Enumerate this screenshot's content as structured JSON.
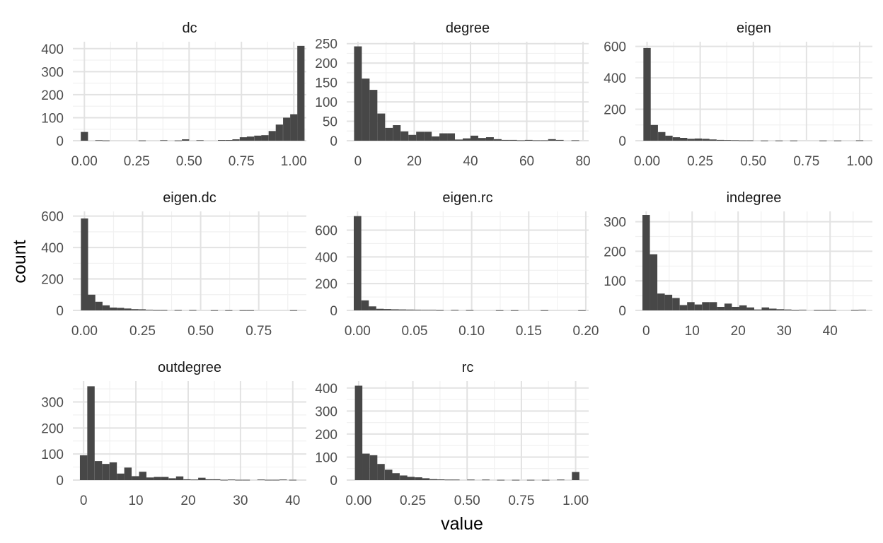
{
  "colors": {
    "bar": "#474747",
    "grid_major": "#e2e2e2",
    "grid_minor": "#f1f1f1",
    "background": "#ffffff"
  },
  "chart_data": {
    "type": "bar",
    "chart_kind": "faceted histogram",
    "xlabel": "value",
    "ylabel": "count",
    "grid": true,
    "facets": [
      {
        "name": "dc",
        "xlim": [
          -0.055,
          1.06
        ],
        "ylim": [
          0,
          430
        ],
        "xticks": [
          0,
          0.25,
          0.5,
          0.75,
          1.0
        ],
        "xtick_labels": [
          "0.00",
          "0.25",
          "0.50",
          "0.75",
          "1.00"
        ],
        "yticks": [
          0,
          100,
          200,
          300,
          400
        ],
        "ytick_labels": [
          "0",
          "100",
          "200",
          "300",
          "400"
        ],
        "binwidth": 0.0345,
        "bins": [
          [
            0,
            38
          ],
          [
            0.069,
            2
          ],
          [
            0.103,
            1
          ],
          [
            0.276,
            1
          ],
          [
            0.379,
            2
          ],
          [
            0.448,
            1
          ],
          [
            0.483,
            6
          ],
          [
            0.552,
            2
          ],
          [
            0.655,
            3
          ],
          [
            0.69,
            3
          ],
          [
            0.724,
            6
          ],
          [
            0.759,
            15
          ],
          [
            0.793,
            18
          ],
          [
            0.828,
            22
          ],
          [
            0.862,
            24
          ],
          [
            0.897,
            42
          ],
          [
            0.931,
            70
          ],
          [
            0.966,
            100
          ],
          [
            1.0,
            115
          ],
          [
            1.034,
            412
          ]
        ]
      },
      {
        "name": "degree",
        "xlim": [
          -4,
          82
        ],
        "ylim": [
          0,
          255
        ],
        "xticks": [
          0,
          20,
          40,
          60,
          80
        ],
        "xtick_labels": [
          "0",
          "20",
          "40",
          "60",
          "80"
        ],
        "yticks": [
          0,
          50,
          100,
          150,
          200,
          250
        ],
        "ytick_labels": [
          "0",
          "50",
          "100",
          "150",
          "200",
          "250"
        ],
        "binwidth": 2.76,
        "bins": [
          [
            0,
            243
          ],
          [
            2.76,
            160
          ],
          [
            5.52,
            131
          ],
          [
            8.28,
            70
          ],
          [
            11.03,
            33
          ],
          [
            13.79,
            40
          ],
          [
            16.55,
            24
          ],
          [
            19.31,
            15
          ],
          [
            22.07,
            23
          ],
          [
            24.83,
            23
          ],
          [
            27.59,
            11
          ],
          [
            30.34,
            19
          ],
          [
            33.1,
            19
          ],
          [
            35.86,
            3
          ],
          [
            38.62,
            6
          ],
          [
            41.38,
            13
          ],
          [
            44.14,
            7
          ],
          [
            46.9,
            9
          ],
          [
            49.66,
            4
          ],
          [
            52.41,
            2
          ],
          [
            55.17,
            2
          ],
          [
            57.93,
            1
          ],
          [
            60.69,
            2
          ],
          [
            63.45,
            1
          ],
          [
            66.21,
            1
          ],
          [
            68.97,
            4
          ],
          [
            71.72,
            2
          ],
          [
            77.24,
            1
          ]
        ]
      },
      {
        "name": "eigen",
        "xlim": [
          -0.055,
          1.06
        ],
        "ylim": [
          0,
          630
        ],
        "xticks": [
          0,
          0.25,
          0.5,
          0.75,
          1.0
        ],
        "xtick_labels": [
          "0.00",
          "0.25",
          "0.50",
          "0.75",
          "1.00"
        ],
        "yticks": [
          0,
          200,
          400,
          600
        ],
        "ytick_labels": [
          "0",
          "200",
          "400",
          "600"
        ],
        "binwidth": 0.0345,
        "bins": [
          [
            0,
            590
          ],
          [
            0.034,
            100
          ],
          [
            0.069,
            55
          ],
          [
            0.103,
            32
          ],
          [
            0.138,
            22
          ],
          [
            0.172,
            18
          ],
          [
            0.207,
            12
          ],
          [
            0.241,
            14
          ],
          [
            0.276,
            12
          ],
          [
            0.31,
            8
          ],
          [
            0.345,
            5
          ],
          [
            0.379,
            4
          ],
          [
            0.414,
            3
          ],
          [
            0.448,
            2
          ],
          [
            0.483,
            2
          ],
          [
            0.552,
            1
          ],
          [
            0.621,
            1
          ],
          [
            0.69,
            1
          ],
          [
            0.828,
            1
          ],
          [
            0.897,
            1
          ],
          [
            1.0,
            2
          ]
        ]
      },
      {
        "name": "eigen.dc",
        "xlim": [
          -0.05,
          0.955
        ],
        "ylim": [
          0,
          630
        ],
        "xticks": [
          0,
          0.25,
          0.5,
          0.75
        ],
        "xtick_labels": [
          "0.00",
          "0.25",
          "0.50",
          "0.75"
        ],
        "yticks": [
          0,
          200,
          400,
          600
        ],
        "ytick_labels": [
          "0",
          "200",
          "400",
          "600"
        ],
        "binwidth": 0.0311,
        "bins": [
          [
            0,
            585
          ],
          [
            0.031,
            100
          ],
          [
            0.062,
            55
          ],
          [
            0.093,
            32
          ],
          [
            0.124,
            18
          ],
          [
            0.155,
            16
          ],
          [
            0.186,
            12
          ],
          [
            0.217,
            8
          ],
          [
            0.248,
            7
          ],
          [
            0.279,
            4
          ],
          [
            0.31,
            2
          ],
          [
            0.341,
            2
          ],
          [
            0.403,
            2
          ],
          [
            0.466,
            2
          ],
          [
            0.559,
            1
          ],
          [
            0.621,
            1
          ],
          [
            0.683,
            1
          ],
          [
            0.714,
            1
          ],
          [
            0.9,
            1
          ]
        ]
      },
      {
        "name": "eigen.rc",
        "xlim": [
          -0.0095,
          0.2025
        ],
        "ylim": [
          0,
          740
        ],
        "xticks": [
          0,
          0.05,
          0.1,
          0.15,
          0.2
        ],
        "xtick_labels": [
          "0.00",
          "0.05",
          "0.10",
          "0.15",
          "0.20"
        ],
        "yticks": [
          0,
          200,
          400,
          600
        ],
        "ytick_labels": [
          "0",
          "200",
          "400",
          "600"
        ],
        "binwidth": 0.0066,
        "bins": [
          [
            0,
            705
          ],
          [
            0.0066,
            75
          ],
          [
            0.0131,
            30
          ],
          [
            0.0197,
            12
          ],
          [
            0.0262,
            10
          ],
          [
            0.0328,
            8
          ],
          [
            0.0393,
            7
          ],
          [
            0.0459,
            6
          ],
          [
            0.0524,
            5
          ],
          [
            0.059,
            4
          ],
          [
            0.0655,
            4
          ],
          [
            0.0721,
            2
          ],
          [
            0.0852,
            3
          ],
          [
            0.0983,
            2
          ],
          [
            0.1245,
            1
          ],
          [
            0.1376,
            1
          ],
          [
            0.1638,
            1
          ],
          [
            0.1966,
            1
          ]
        ]
      },
      {
        "name": "indegree",
        "xlim": [
          -2.35,
          49.2
        ],
        "ylim": [
          0,
          335
        ],
        "xticks": [
          0,
          10,
          20,
          30,
          40
        ],
        "xtick_labels": [
          "0",
          "10",
          "20",
          "30",
          "40"
        ],
        "yticks": [
          0,
          100,
          200,
          300
        ],
        "ytick_labels": [
          "0",
          "100",
          "200",
          "300"
        ],
        "binwidth": 1.62,
        "bins": [
          [
            0,
            323
          ],
          [
            1.62,
            190
          ],
          [
            3.24,
            57
          ],
          [
            4.86,
            53
          ],
          [
            6.48,
            42
          ],
          [
            8.1,
            18
          ],
          [
            9.72,
            28
          ],
          [
            11.34,
            20
          ],
          [
            12.97,
            28
          ],
          [
            14.59,
            28
          ],
          [
            16.21,
            12
          ],
          [
            17.83,
            23
          ],
          [
            19.45,
            12
          ],
          [
            21.07,
            17
          ],
          [
            22.69,
            10
          ],
          [
            24.31,
            3
          ],
          [
            25.93,
            10
          ],
          [
            27.55,
            6
          ],
          [
            29.17,
            4
          ],
          [
            30.79,
            3
          ],
          [
            32.41,
            1
          ],
          [
            34.03,
            2
          ],
          [
            37.28,
            1
          ],
          [
            38.9,
            1
          ],
          [
            40.52,
            1
          ],
          [
            45.38,
            1
          ],
          [
            47.0,
            2
          ]
        ]
      },
      {
        "name": "outdegree",
        "xlim": [
          -2.05,
          42.6
        ],
        "ylim": [
          0,
          380
        ],
        "xticks": [
          0,
          10,
          20,
          30,
          40
        ],
        "xtick_labels": [
          "0",
          "10",
          "20",
          "30",
          "40"
        ],
        "yticks": [
          0,
          100,
          200,
          300
        ],
        "ytick_labels": [
          "0",
          "100",
          "200",
          "300"
        ],
        "binwidth": 1.41,
        "bins": [
          [
            0,
            95
          ],
          [
            1.41,
            360
          ],
          [
            2.83,
            73
          ],
          [
            4.24,
            62
          ],
          [
            5.66,
            68
          ],
          [
            7.07,
            25
          ],
          [
            8.48,
            48
          ],
          [
            9.9,
            15
          ],
          [
            11.31,
            32
          ],
          [
            12.72,
            10
          ],
          [
            14.14,
            12
          ],
          [
            15.55,
            12
          ],
          [
            16.97,
            7
          ],
          [
            18.38,
            14
          ],
          [
            19.79,
            3
          ],
          [
            21.21,
            2
          ],
          [
            22.62,
            9
          ],
          [
            24.03,
            3
          ],
          [
            25.45,
            3
          ],
          [
            26.86,
            1
          ],
          [
            28.28,
            2
          ],
          [
            29.69,
            1
          ],
          [
            31.1,
            1
          ],
          [
            33.93,
            2
          ],
          [
            35.34,
            1
          ],
          [
            36.76,
            1
          ],
          [
            38.17,
            2
          ],
          [
            40.0,
            1
          ]
        ]
      },
      {
        "name": "rc",
        "xlim": [
          -0.055,
          1.06
        ],
        "ylim": [
          0,
          430
        ],
        "xticks": [
          0,
          0.25,
          0.5,
          0.75,
          1.0
        ],
        "xtick_labels": [
          "0.00",
          "0.25",
          "0.50",
          "0.75",
          "1.00"
        ],
        "yticks": [
          0,
          100,
          200,
          300,
          400
        ],
        "ytick_labels": [
          "0",
          "100",
          "200",
          "300",
          "400"
        ],
        "binwidth": 0.0345,
        "bins": [
          [
            0,
            410
          ],
          [
            0.034,
            115
          ],
          [
            0.069,
            108
          ],
          [
            0.103,
            70
          ],
          [
            0.138,
            45
          ],
          [
            0.172,
            30
          ],
          [
            0.207,
            20
          ],
          [
            0.241,
            14
          ],
          [
            0.276,
            12
          ],
          [
            0.31,
            8
          ],
          [
            0.345,
            4
          ],
          [
            0.379,
            3
          ],
          [
            0.414,
            2
          ],
          [
            0.448,
            2
          ],
          [
            0.517,
            2
          ],
          [
            0.586,
            2
          ],
          [
            0.655,
            1
          ],
          [
            0.724,
            1
          ],
          [
            0.793,
            1
          ],
          [
            0.862,
            1
          ],
          [
            0.931,
            2
          ],
          [
            1.0,
            35
          ]
        ]
      }
    ]
  }
}
